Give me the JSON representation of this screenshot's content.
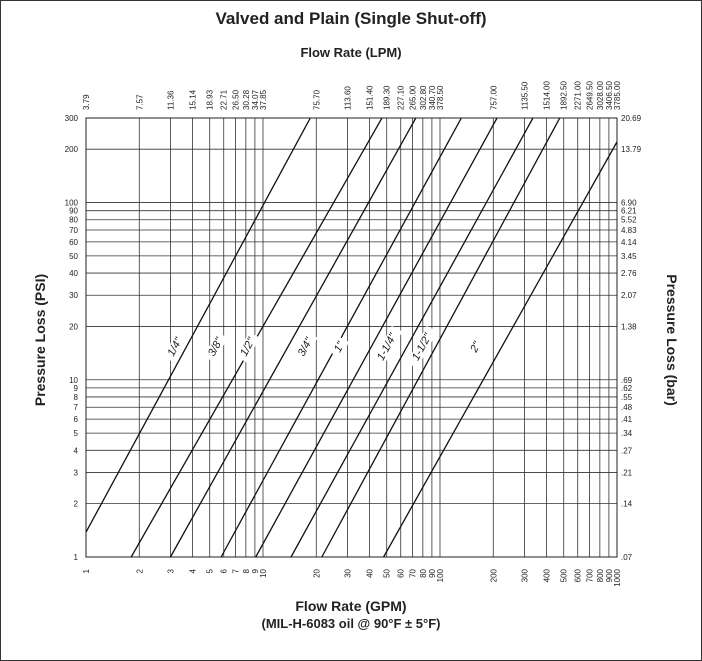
{
  "chart_data": {
    "type": "line",
    "title": "Valved and Plain (Single Shut-off)",
    "top_axis_label": "Flow Rate (LPM)",
    "xlabel": "Flow Rate (GPM)",
    "xlabel_sub": "(MIL-H-6083 oil @ 90°F ± 5°F)",
    "ylabel": "Pressure Loss (PSI)",
    "ylabel_right": "Pressure Loss (bar)",
    "x_scale": "log",
    "y_scale": "log",
    "xlim": [
      1,
      1000
    ],
    "ylim": [
      1,
      300
    ],
    "grid": true,
    "x_ticks": [
      1,
      2,
      3,
      4,
      5,
      6,
      7,
      8,
      9,
      10,
      20,
      30,
      40,
      50,
      60,
      70,
      80,
      90,
      100,
      200,
      300,
      400,
      500,
      600,
      700,
      800,
      900,
      1000
    ],
    "x_tick_labels": [
      "1",
      "2",
      "3",
      "4",
      "5",
      "6",
      "7",
      "8",
      "9",
      "10",
      "20",
      "30",
      "40",
      "50",
      "60",
      "70",
      "80",
      "90",
      "100",
      "200",
      "300",
      "400",
      "500",
      "600",
      "700",
      "800",
      "900",
      "1000"
    ],
    "top_ticks": [
      {
        "gpm": 1,
        "label": "3.79"
      },
      {
        "gpm": 2,
        "label": "7.57"
      },
      {
        "gpm": 3,
        "label": "11.36"
      },
      {
        "gpm": 4,
        "label": "15.14"
      },
      {
        "gpm": 5,
        "label": "18.93"
      },
      {
        "gpm": 6,
        "label": "22.71"
      },
      {
        "gpm": 7,
        "label": "26.50"
      },
      {
        "gpm": 8,
        "label": "30.28"
      },
      {
        "gpm": 9,
        "label": "34.07"
      },
      {
        "gpm": 10,
        "label": "37.85"
      },
      {
        "gpm": 20,
        "label": "75.70"
      },
      {
        "gpm": 30,
        "label": "113.60"
      },
      {
        "gpm": 40,
        "label": "151.40"
      },
      {
        "gpm": 50,
        "label": "189.30"
      },
      {
        "gpm": 60,
        "label": "227.10"
      },
      {
        "gpm": 70,
        "label": "265.00"
      },
      {
        "gpm": 80,
        "label": "302.80"
      },
      {
        "gpm": 90,
        "label": "340.70"
      },
      {
        "gpm": 100,
        "label": "378.50"
      },
      {
        "gpm": 200,
        "label": "757.00"
      },
      {
        "gpm": 300,
        "label": "1135.50"
      },
      {
        "gpm": 400,
        "label": "1514.00"
      },
      {
        "gpm": 500,
        "label": "1892.50"
      },
      {
        "gpm": 600,
        "label": "2271.00"
      },
      {
        "gpm": 700,
        "label": "2649.50"
      },
      {
        "gpm": 800,
        "label": "3028.00"
      },
      {
        "gpm": 900,
        "label": "3406.50"
      },
      {
        "gpm": 1000,
        "label": "3785.00"
      }
    ],
    "y_ticks": [
      1,
      2,
      3,
      4,
      5,
      6,
      7,
      8,
      9,
      10,
      20,
      30,
      40,
      50,
      60,
      70,
      80,
      90,
      100,
      200,
      300
    ],
    "y_tick_labels": [
      "1",
      "2",
      "3",
      "4",
      "5",
      "6",
      "7",
      "8",
      "9",
      "10",
      "20",
      "30",
      "40",
      "50",
      "60",
      "70",
      "80",
      "90",
      "100",
      "200",
      "300"
    ],
    "right_ticks": [
      {
        "psi": 1,
        "label": ".07"
      },
      {
        "psi": 2,
        "label": ".14"
      },
      {
        "psi": 3,
        "label": ".21"
      },
      {
        "psi": 4,
        "label": ".27"
      },
      {
        "psi": 5,
        "label": ".34"
      },
      {
        "psi": 6,
        "label": ".41"
      },
      {
        "psi": 7,
        "label": ".48"
      },
      {
        "psi": 8,
        "label": ".55"
      },
      {
        "psi": 9,
        "label": ".62"
      },
      {
        "psi": 10,
        "label": ".69"
      },
      {
        "psi": 20,
        "label": "1.38"
      },
      {
        "psi": 30,
        "label": "2.07"
      },
      {
        "psi": 40,
        "label": "2.76"
      },
      {
        "psi": 50,
        "label": "3.45"
      },
      {
        "psi": 60,
        "label": "4.14"
      },
      {
        "psi": 70,
        "label": "4.83"
      },
      {
        "psi": 80,
        "label": "5.52"
      },
      {
        "psi": 90,
        "label": "6.21"
      },
      {
        "psi": 100,
        "label": "6.90"
      },
      {
        "psi": 200,
        "label": "13.79"
      },
      {
        "psi": 300,
        "label": "20.69"
      }
    ],
    "series": [
      {
        "name": "1/4\"",
        "label_at": [
          3.3,
          15
        ],
        "points": [
          [
            1,
            1.38
          ],
          [
            18.5,
            300
          ]
        ]
      },
      {
        "name": "3/8\"",
        "label_at": [
          5.6,
          15
        ],
        "points": [
          [
            1.8,
            1
          ],
          [
            47,
            300
          ]
        ]
      },
      {
        "name": "1/2\"",
        "label_at": [
          8.5,
          15
        ],
        "points": [
          [
            3,
            1
          ],
          [
            73,
            300
          ]
        ]
      },
      {
        "name": "3/4\"",
        "label_at": [
          18,
          15
        ],
        "points": [
          [
            5.8,
            1
          ],
          [
            132,
            300
          ]
        ]
      },
      {
        "name": "1\"",
        "label_at": [
          28,
          15
        ],
        "points": [
          [
            9.1,
            1
          ],
          [
            210,
            300
          ]
        ]
      },
      {
        "name": "1-1/4\"",
        "label_at": [
          52,
          15
        ],
        "points": [
          [
            14.4,
            1
          ],
          [
            335,
            300
          ]
        ]
      },
      {
        "name": "1-1/2\"",
        "label_at": [
          82,
          15
        ],
        "points": [
          [
            21.5,
            1
          ],
          [
            475,
            300
          ]
        ]
      },
      {
        "name": "2\"",
        "label_at": [
          165,
          15
        ],
        "points": [
          [
            48,
            1
          ],
          [
            1000,
            220
          ]
        ]
      }
    ]
  }
}
